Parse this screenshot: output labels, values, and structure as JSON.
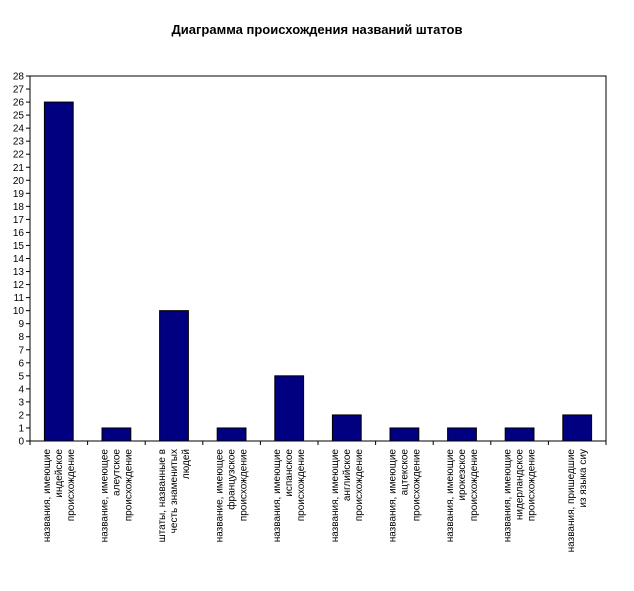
{
  "chart_data": {
    "type": "bar",
    "title": "Диаграмма происхождения названий штатов",
    "xlabel": "",
    "ylabel": "",
    "ylim": [
      0,
      28
    ],
    "yticks": [
      0,
      1,
      2,
      3,
      4,
      5,
      6,
      7,
      8,
      9,
      10,
      11,
      12,
      13,
      14,
      15,
      16,
      17,
      18,
      19,
      20,
      21,
      22,
      23,
      24,
      25,
      26,
      27,
      28
    ],
    "grid": false,
    "legend": "none",
    "bar_color": "#000080",
    "categories": [
      [
        "названия, имеющие",
        "индейское",
        "происхождение"
      ],
      [
        "название, имеющее",
        "алеутское",
        "происхождение"
      ],
      [
        "штаты, названные в",
        "честь знаменитых",
        "людей"
      ],
      [
        "название, имеющее",
        "французское",
        "происхождение"
      ],
      [
        "названия, имеющие",
        "испанское",
        "происхождение"
      ],
      [
        "названия, имеющие",
        "английское",
        "происхождение"
      ],
      [
        "названия, имеющие",
        "ацтекское",
        "происхождение"
      ],
      [
        "названия, имеющие",
        "ирокезское",
        "происхождение"
      ],
      [
        "названия, имеющие",
        "нидерландское",
        "происхождение"
      ],
      [
        "названия, пришедшие",
        "из языка сиу"
      ]
    ],
    "values": [
      26,
      1,
      10,
      1,
      5,
      2,
      1,
      1,
      1,
      2
    ]
  }
}
